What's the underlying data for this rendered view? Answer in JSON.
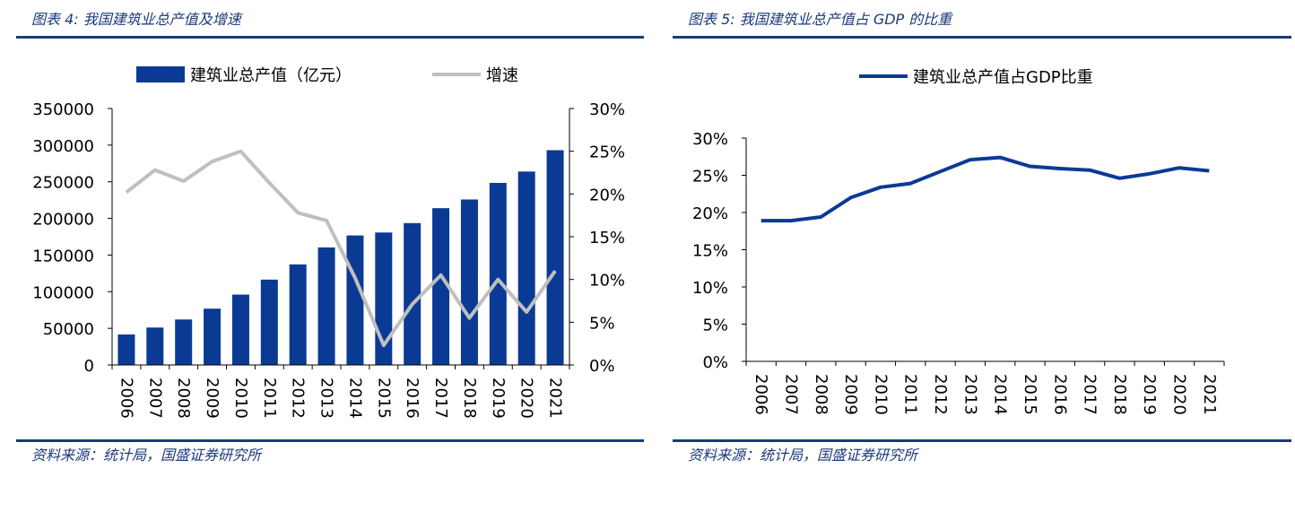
{
  "colors": {
    "bar": "#0b3a94",
    "growth_line": "#bfbfbf",
    "share_line": "#0b3a94",
    "accent": "#1a3a7a"
  },
  "left": {
    "title": "图表 4:  我国建筑业总产值及增速",
    "source": "资料来源：统计局，国盛证券研究所"
  },
  "right": {
    "title": "图表 5:  我国建筑业总产值占 GDP 的比重",
    "source": "资料来源：统计局，国盛证券研究所"
  },
  "chart_data": [
    {
      "type": "bar",
      "categories": [
        "2006",
        "2007",
        "2008",
        "2009",
        "2010",
        "2011",
        "2012",
        "2013",
        "2014",
        "2015",
        "2016",
        "2017",
        "2018",
        "2019",
        "2020",
        "2021"
      ],
      "series": [
        {
          "name": "建筑业总产值（亿元）",
          "type": "bar",
          "axis": "left",
          "values": [
            41557,
            51044,
            62037,
            76808,
            96031,
            116463,
            137218,
            160366,
            176713,
            180757,
            193567,
            213944,
            225817,
            248443,
            263947,
            293079
          ]
        },
        {
          "name": "增速",
          "type": "line",
          "axis": "right",
          "unit": "%",
          "values": [
            20.2,
            22.8,
            21.5,
            23.8,
            25.0,
            21.3,
            17.8,
            16.9,
            10.2,
            2.3,
            7.1,
            10.5,
            5.5,
            10.0,
            6.2,
            11.0
          ]
        }
      ],
      "y_left": {
        "min": 0,
        "max": 350000,
        "ticks": [
          "0",
          "50000",
          "100000",
          "150000",
          "200000",
          "250000",
          "300000",
          "350000"
        ]
      },
      "y_right": {
        "min": 0,
        "max": 30,
        "ticks": [
          "0%",
          "5%",
          "10%",
          "15%",
          "20%",
          "25%",
          "30%"
        ]
      },
      "legend_position": "top",
      "grid": false
    },
    {
      "type": "line",
      "categories": [
        "2006",
        "2007",
        "2008",
        "2009",
        "2010",
        "2011",
        "2012",
        "2013",
        "2014",
        "2015",
        "2016",
        "2017",
        "2018",
        "2019",
        "2020",
        "2021"
      ],
      "series": [
        {
          "name": "建筑业总产值占GDP比重",
          "unit": "%",
          "values": [
            18.9,
            18.9,
            19.4,
            22.0,
            23.4,
            23.9,
            25.5,
            27.1,
            27.4,
            26.2,
            25.9,
            25.7,
            24.6,
            25.2,
            26.0,
            25.6
          ]
        }
      ],
      "y": {
        "min": 0,
        "max": 30,
        "ticks": [
          "0%",
          "5%",
          "10%",
          "15%",
          "20%",
          "25%",
          "30%"
        ]
      },
      "legend_position": "top",
      "grid": false
    }
  ]
}
